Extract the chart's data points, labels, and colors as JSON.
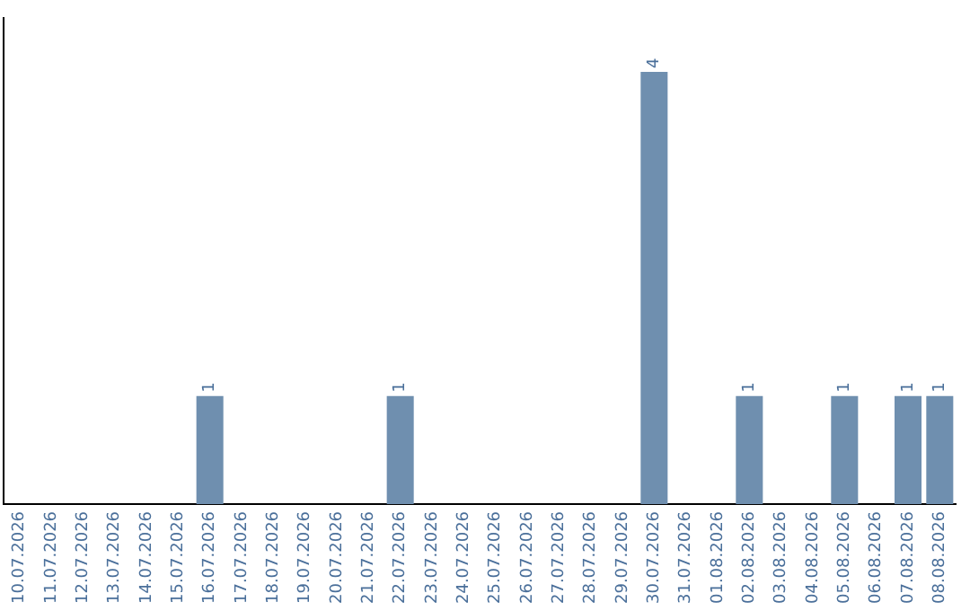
{
  "chart_data": {
    "type": "bar",
    "categories": [
      "10.07.2026",
      "11.07.2026",
      "12.07.2026",
      "13.07.2026",
      "14.07.2026",
      "15.07.2026",
      "16.07.2026",
      "17.07.2026",
      "18.07.2026",
      "19.07.2026",
      "20.07.2026",
      "21.07.2026",
      "22.07.2026",
      "23.07.2026",
      "24.07.2026",
      "25.07.2026",
      "26.07.2026",
      "27.07.2026",
      "28.07.2026",
      "29.07.2026",
      "30.07.2026",
      "31.07.2026",
      "01.08.2026",
      "02.08.2026",
      "03.08.2026",
      "04.08.2026",
      "05.08.2026",
      "06.08.2026",
      "07.08.2026",
      "08.08.2026"
    ],
    "values": [
      null,
      null,
      null,
      null,
      null,
      null,
      1,
      null,
      null,
      null,
      null,
      null,
      1,
      null,
      null,
      null,
      null,
      null,
      null,
      null,
      4,
      null,
      null,
      1,
      null,
      null,
      1,
      null,
      1,
      1
    ],
    "color": "#6f8faf",
    "data_labels": true,
    "grid": false,
    "legend": false,
    "tick_labels": "x"
  }
}
